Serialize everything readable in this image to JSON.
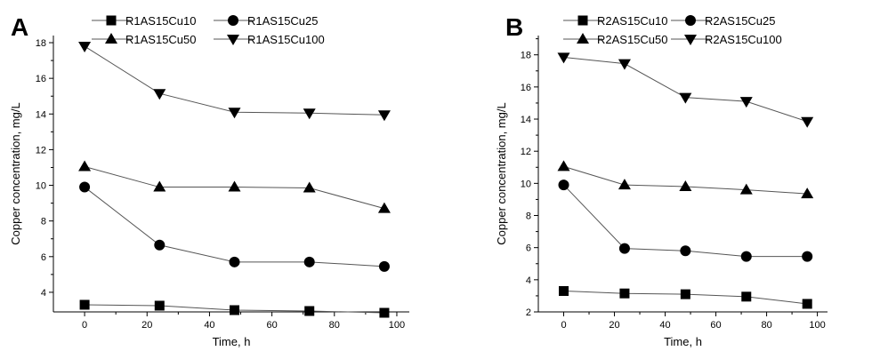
{
  "chart_data": [
    {
      "type": "line",
      "panel_label": "A",
      "xlabel": "Time, h",
      "ylabel": "Copper concentration, mg/L",
      "xlim": [
        -10,
        104
      ],
      "ylim": [
        2.9,
        18.4
      ],
      "xticks": [
        0,
        20,
        40,
        60,
        80,
        100
      ],
      "yticks": [
        4,
        6,
        8,
        10,
        12,
        14,
        16,
        18
      ],
      "x": [
        0,
        24,
        48,
        72,
        96
      ],
      "legend": "top",
      "series": [
        {
          "name": "R1AS15Cu10",
          "marker": "square",
          "values": [
            3.3,
            3.25,
            3.0,
            2.95,
            2.85
          ]
        },
        {
          "name": "R1AS15Cu25",
          "marker": "circle",
          "values": [
            9.9,
            6.65,
            5.7,
            5.7,
            5.45
          ]
        },
        {
          "name": "R1AS15Cu50",
          "marker": "triangle-up",
          "values": [
            11.05,
            9.9,
            9.9,
            9.85,
            8.7
          ]
        },
        {
          "name": "R1AS15Cu100",
          "marker": "triangle-down",
          "values": [
            17.8,
            15.15,
            14.1,
            14.05,
            13.95
          ]
        }
      ]
    },
    {
      "type": "line",
      "panel_label": "B",
      "xlabel": "Time, h",
      "ylabel": "Copper concentration, mg/L",
      "xlim": [
        -10,
        104
      ],
      "ylim": [
        2.0,
        19.2
      ],
      "xticks": [
        0,
        20,
        40,
        60,
        80,
        100
      ],
      "yticks": [
        2,
        4,
        6,
        8,
        10,
        12,
        14,
        16,
        18
      ],
      "x": [
        0,
        24,
        48,
        72,
        96
      ],
      "legend": "top",
      "series": [
        {
          "name": "R2AS15Cu10",
          "marker": "square",
          "values": [
            3.3,
            3.15,
            3.1,
            2.95,
            2.5
          ]
        },
        {
          "name": "R2AS15Cu25",
          "marker": "circle",
          "values": [
            9.9,
            5.95,
            5.8,
            5.45,
            5.45
          ]
        },
        {
          "name": "R2AS15Cu50",
          "marker": "triangle-up",
          "values": [
            11.05,
            9.9,
            9.8,
            9.6,
            9.35
          ]
        },
        {
          "name": "R2AS15Cu100",
          "marker": "triangle-down",
          "values": [
            17.85,
            17.45,
            15.35,
            15.1,
            13.85
          ]
        }
      ]
    }
  ]
}
